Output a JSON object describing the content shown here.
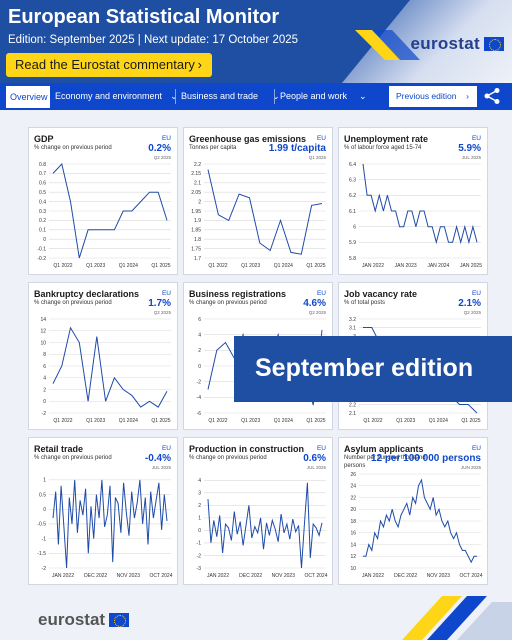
{
  "header": {
    "title": "European Statistical Monitor",
    "edition": "Edition: September 2025 | Next update: 17 October 2025",
    "commentary_button": "Read the Eurostat commentary",
    "logo_text": "eurostat"
  },
  "nav": {
    "items": [
      "Overview",
      "Economy and environment",
      "Business and trade",
      "People and work"
    ],
    "previous_edition": "Previous edition",
    "share_icon": "share-icon"
  },
  "banner": {
    "text": "September edition"
  },
  "footer": {
    "logo_text": "eurostat"
  },
  "colors": {
    "brand_blue": "#0e47cb",
    "dark_blue": "#1e4fa3",
    "yellow": "#ffd617"
  },
  "chart_data": [
    {
      "id": "gdp",
      "type": "line",
      "title": "GDP",
      "subtitle": "% change on previous period",
      "region": "EU",
      "value": "0.2%",
      "period": "Q2 2025",
      "x_labels": [
        "Q1 2022",
        "Q1 2023",
        "Q1 2024",
        "Q1 2025"
      ],
      "y_ticks": [
        0.8,
        0.7,
        0.6,
        0.5,
        0.4,
        0.3,
        0.2,
        0.1,
        0,
        -0.1,
        -0.2
      ],
      "ylim": [
        -0.2,
        0.8
      ],
      "values": [
        0.7,
        0.8,
        0.4,
        -0.2,
        0.1,
        0.1,
        0.1,
        0.1,
        0.3,
        0.3,
        0.4,
        0.5,
        0.5,
        0.2
      ]
    },
    {
      "id": "ghg",
      "type": "line",
      "title": "Greenhouse gas emissions",
      "subtitle": "Tonnes per capita",
      "region": "EU",
      "value": "1.99 t/capita",
      "period": "Q1 2025",
      "x_labels": [
        "Q1 2022",
        "Q1 2023",
        "Q1 2024",
        "Q1 2025"
      ],
      "y_ticks": [
        2.2,
        2.15,
        2.1,
        2.05,
        2,
        1.95,
        1.9,
        1.85,
        1.8,
        1.75,
        1.7
      ],
      "ylim": [
        1.7,
        2.2
      ],
      "values": [
        2.17,
        1.93,
        1.9,
        2.04,
        2.02,
        1.78,
        1.74,
        1.9,
        1.73,
        1.72,
        1.98,
        1.99
      ]
    },
    {
      "id": "unemployment",
      "type": "line",
      "title": "Unemployment rate",
      "subtitle": "% of labour force aged 15-74",
      "region": "EU",
      "value": "5.9%",
      "period": "JUL 2025",
      "x_labels": [
        "JAN 2022",
        "JAN 2023",
        "JAN 2024",
        "JAN 2025"
      ],
      "y_ticks": [
        6.4,
        6.3,
        6.2,
        6.1,
        6,
        5.9,
        5.8
      ],
      "ylim": [
        5.8,
        6.4
      ],
      "values": [
        6.4,
        6.2,
        6.2,
        6.1,
        6.2,
        6.1,
        6.2,
        6.1,
        6.1,
        6.0,
        6.0,
        6.1,
        6.1,
        6.0,
        6.1,
        6.1,
        6.0,
        6.0,
        5.9,
        6.0,
        6.0,
        5.9,
        5.9,
        6.0,
        5.9,
        6.0,
        5.9,
        6.0,
        5.9
      ]
    },
    {
      "id": "bankruptcy",
      "type": "line",
      "title": "Bankruptcy declarations",
      "subtitle": "% change on previous period",
      "region": "EU",
      "value": "1.7%",
      "period": "Q2 2025",
      "x_labels": [
        "Q1 2022",
        "Q1 2023",
        "Q1 2024",
        "Q1 2025"
      ],
      "y_ticks": [
        14,
        12,
        10,
        8,
        6,
        4,
        2,
        0,
        -2
      ],
      "ylim": [
        -2,
        14
      ],
      "values": [
        3,
        6,
        12.5,
        10,
        0,
        11,
        0,
        4,
        2,
        1,
        -1,
        0,
        -1,
        1.7
      ]
    },
    {
      "id": "registrations",
      "type": "line",
      "title": "Business registrations",
      "subtitle": "% change on previous period",
      "region": "EU",
      "value": "4.6%",
      "period": "Q2 2025",
      "x_labels": [
        "Q1 2022",
        "Q1 2023",
        "Q1 2024",
        "Q1 2025"
      ],
      "y_ticks": [
        6,
        4,
        2,
        0,
        -2,
        -4,
        -6
      ],
      "ylim": [
        -6,
        6
      ],
      "values": [
        -3,
        2,
        3,
        1,
        4,
        -2,
        2,
        1,
        4,
        -3,
        2,
        0,
        -5,
        4.6
      ]
    },
    {
      "id": "vacancy",
      "type": "line",
      "title": "Job vacancy rate",
      "subtitle": "% of total posts",
      "region": "EU",
      "value": "2.1%",
      "period": "Q2 2025",
      "x_labels": [
        "Q1 2022",
        "Q1 2023",
        "Q1 2024",
        "Q1 2025"
      ],
      "y_ticks": [
        3.2,
        3.1,
        3,
        2.9,
        2.8,
        2.7,
        2.6,
        2.5,
        2.4,
        2.3,
        2.2,
        2.1
      ],
      "ylim": [
        2.1,
        3.2
      ],
      "values": [
        3.1,
        3.1,
        2.9,
        2.9,
        2.9,
        2.8,
        2.6,
        2.5,
        2.4,
        2.4,
        2.3,
        2.2,
        2.2,
        2.1
      ]
    },
    {
      "id": "retail",
      "type": "line",
      "title": "Retail trade",
      "subtitle": "% change on previous period",
      "region": "EU",
      "value": "-0.4%",
      "period": "JUL 2025",
      "x_labels": [
        "JAN 2022",
        "DEC 2022",
        "NOV 2023",
        "OCT 2024"
      ],
      "y_ticks": [
        1,
        0.5,
        0,
        -0.5,
        -1,
        -1.5,
        -2
      ],
      "ylim": [
        -2,
        1.2
      ],
      "values": [
        -0.3,
        0.6,
        -1.2,
        0.8,
        -0.6,
        -2.0,
        0.4,
        -0.5,
        1.0,
        -0.8,
        0.3,
        -0.2,
        0.7,
        -1.5,
        0.1,
        -1.0,
        0.5,
        -0.3,
        1.0,
        -0.6,
        -0.2,
        0.8,
        -1.8,
        0.4,
        0.2,
        -0.8,
        0.9,
        -0.1,
        -0.9,
        0.6,
        -0.3,
        0.2,
        1.0,
        -0.5,
        0.4,
        -1.2,
        0.6,
        -0.3,
        0.3,
        0.9,
        -0.7,
        0.5,
        -0.4
      ]
    },
    {
      "id": "construction",
      "type": "line",
      "title": "Production in construction",
      "subtitle": "% change on previous period",
      "region": "EU",
      "value": "0.6%",
      "period": "JUL 2025",
      "x_labels": [
        "JAN 2022",
        "DEC 2022",
        "NOV 2023",
        "OCT 2024"
      ],
      "y_ticks": [
        4,
        3,
        2,
        1,
        0,
        -1,
        -2,
        -3
      ],
      "ylim": [
        -3,
        4.5
      ],
      "values": [
        2.5,
        -1.0,
        0.8,
        -0.5,
        1.2,
        -1.8,
        0.5,
        0.2,
        -0.8,
        1.5,
        -0.3,
        0.7,
        -1.2,
        0.4,
        2.0,
        -0.6,
        0.3,
        -0.2,
        1.0,
        -1.5,
        0.6,
        -0.4,
        0.8,
        0.1,
        -0.9,
        1.3,
        -0.2,
        0.5,
        -0.7,
        0.9,
        -0.1,
        0.4,
        -3.0,
        0.6,
        3.8,
        -2.2,
        0.5,
        0.2,
        -0.4,
        0.6
      ]
    },
    {
      "id": "asylum",
      "type": "line",
      "title": "Asylum applicants",
      "subtitle": "Number per hundred thousand persons",
      "region": "EU",
      "value": "12 per 100 000 persons",
      "period": "JUN 2025",
      "x_labels": [
        "JAN 2022",
        "DEC 2022",
        "NOV 2023",
        "OCT 2024"
      ],
      "y_ticks": [
        26,
        24,
        22,
        20,
        18,
        16,
        14,
        12,
        10
      ],
      "ylim": [
        10,
        26
      ],
      "values": [
        12,
        12,
        14,
        13,
        16,
        15,
        18,
        17,
        19,
        18,
        20,
        18,
        17,
        19,
        20,
        21,
        19,
        22,
        21,
        24,
        25,
        22,
        21,
        20,
        22,
        19,
        20,
        18,
        17,
        18,
        16,
        15,
        16,
        14,
        13,
        13,
        12,
        11,
        12,
        12
      ]
    }
  ]
}
